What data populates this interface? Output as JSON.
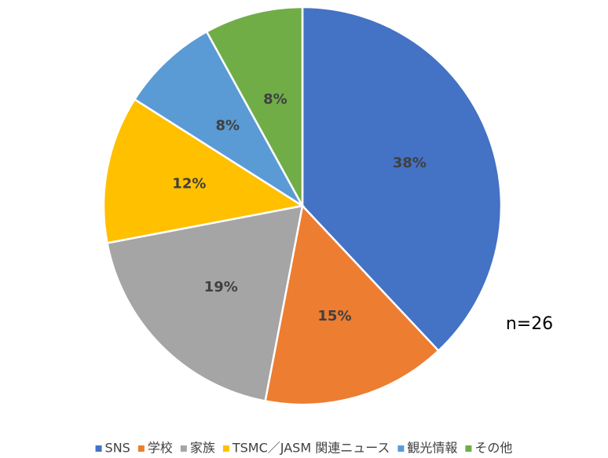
{
  "chart_data": {
    "type": "pie",
    "categories": [
      "SNS",
      "学校",
      "家族",
      "TSMC／JASM 関連ニュース",
      "観光情報",
      "その他"
    ],
    "values": [
      38,
      15,
      19,
      12,
      8,
      8
    ],
    "value_labels": [
      "38%",
      "15%",
      "19%",
      "12%",
      "8%",
      "8%"
    ],
    "colors": [
      "#4472c4",
      "#ed7d31",
      "#a5a5a5",
      "#ffc000",
      "#5b9bd5",
      "#70ad47"
    ],
    "annotation": "n=26",
    "legend": "bottom"
  }
}
